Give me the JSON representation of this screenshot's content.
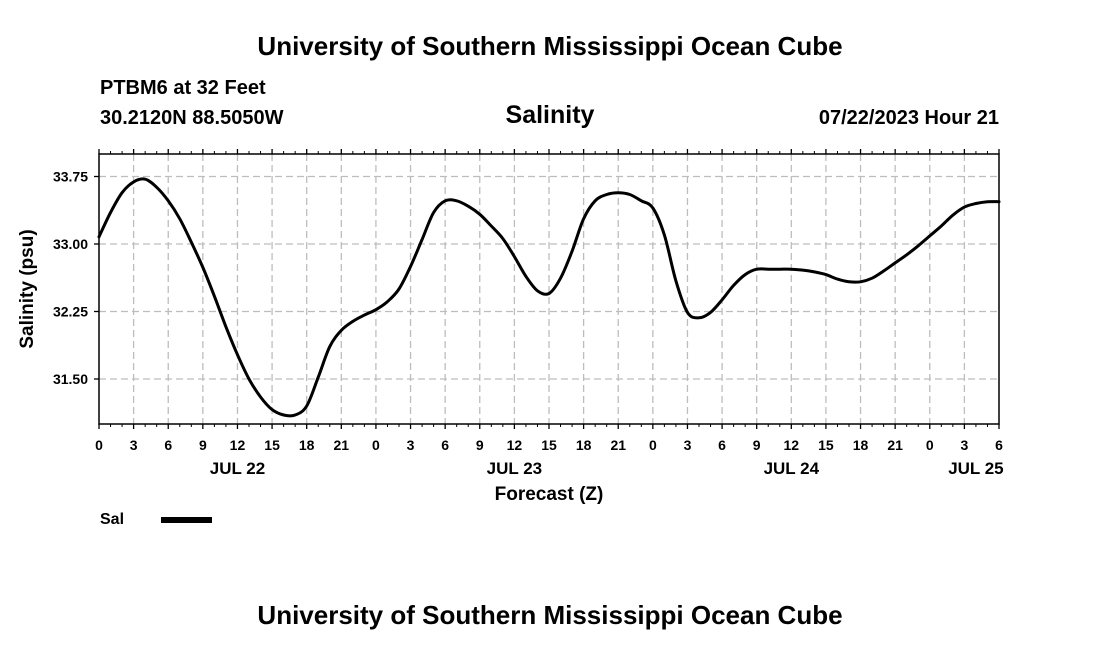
{
  "header": {
    "title": "University of Southern Mississippi Ocean Cube",
    "station": "PTBM6 at 32 Feet",
    "coords": "30.2120N  88.5050W",
    "variable": "Salinity",
    "datetime": "07/22/2023 Hour 21"
  },
  "footer": {
    "title": "University of Southern Mississippi Ocean Cube"
  },
  "legend": {
    "label": "Sal",
    "color": "#000000"
  },
  "chart_data": {
    "type": "line",
    "xlabel": "Forecast (Z)",
    "ylabel": "Salinity (psu)",
    "xlim": [
      0,
      78
    ],
    "ylim": [
      31.0,
      34.0
    ],
    "x_ticks": [
      0,
      3,
      6,
      9,
      12,
      15,
      18,
      21,
      24,
      27,
      30,
      33,
      36,
      39,
      42,
      45,
      48,
      51,
      54,
      57,
      60,
      63,
      66,
      69,
      72,
      75,
      78
    ],
    "x_tick_labels": [
      "0",
      "3",
      "6",
      "9",
      "12",
      "15",
      "18",
      "21",
      "0",
      "3",
      "6",
      "9",
      "12",
      "15",
      "18",
      "21",
      "0",
      "3",
      "6",
      "9",
      "12",
      "15",
      "18",
      "21",
      "0",
      "3",
      "6"
    ],
    "y_ticks": [
      31.5,
      32.25,
      33.0,
      33.75
    ],
    "y_tick_labels": [
      "31.50",
      "32.25",
      "33.00",
      "33.75"
    ],
    "day_labels": [
      {
        "x": 12,
        "label": "JUL 22"
      },
      {
        "x": 36,
        "label": "JUL 23"
      },
      {
        "x": 60,
        "label": "JUL 24"
      },
      {
        "x": 76,
        "label": "JUL 25"
      }
    ],
    "grid": true,
    "series": [
      {
        "name": "Sal",
        "color": "#000000",
        "x": [
          0,
          1,
          2,
          3,
          4,
          5,
          6,
          7,
          8,
          9,
          10,
          11,
          12,
          13,
          14,
          15,
          16,
          17,
          18,
          19,
          20,
          21,
          22,
          23,
          24,
          25,
          26,
          27,
          28,
          29,
          30,
          31,
          32,
          33,
          34,
          35,
          36,
          37,
          38,
          39,
          40,
          41,
          42,
          43,
          44,
          45,
          46,
          47,
          48,
          49,
          50,
          51,
          52,
          53,
          54,
          55,
          56,
          57,
          58,
          59,
          60,
          61,
          62,
          63,
          64,
          65,
          66,
          67,
          68,
          69,
          70,
          71,
          72,
          73,
          74,
          75,
          76,
          77,
          78
        ],
        "values": [
          33.08,
          33.35,
          33.57,
          33.69,
          33.72,
          33.63,
          33.48,
          33.28,
          33.02,
          32.74,
          32.42,
          32.08,
          31.77,
          31.5,
          31.3,
          31.16,
          31.1,
          31.1,
          31.2,
          31.52,
          31.86,
          32.04,
          32.14,
          32.21,
          32.27,
          32.36,
          32.5,
          32.75,
          33.05,
          33.35,
          33.48,
          33.48,
          33.42,
          33.33,
          33.2,
          33.06,
          32.86,
          32.64,
          32.48,
          32.45,
          32.62,
          32.92,
          33.28,
          33.48,
          33.55,
          33.57,
          33.55,
          33.48,
          33.4,
          33.1,
          32.59,
          32.24,
          32.18,
          32.24,
          32.38,
          32.54,
          32.66,
          32.72,
          32.72,
          32.72,
          32.72,
          32.71,
          32.69,
          32.66,
          32.61,
          32.58,
          32.58,
          32.62,
          32.7,
          32.79,
          32.88,
          32.98,
          33.09,
          33.2,
          33.32,
          33.41,
          33.45,
          33.47,
          33.47
        ]
      }
    ]
  }
}
